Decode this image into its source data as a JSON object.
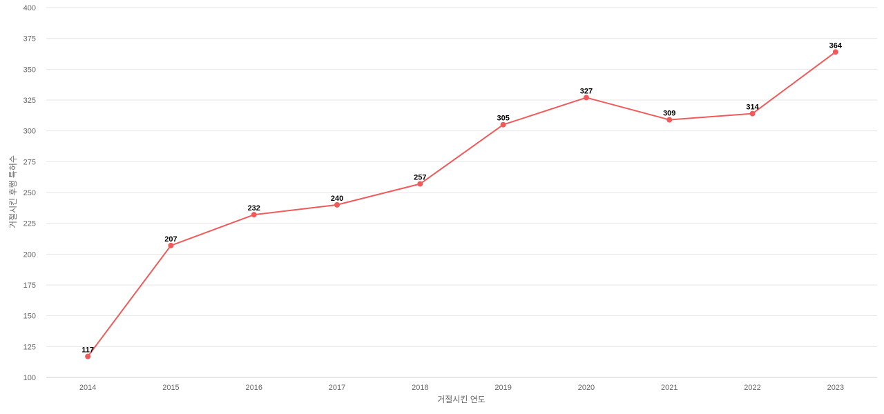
{
  "chart_data": {
    "type": "line",
    "title": "",
    "xlabel": "거절시킨 연도",
    "ylabel": "거절시킨 후행 특허수",
    "categories": [
      "2014",
      "2015",
      "2016",
      "2017",
      "2018",
      "2019",
      "2020",
      "2021",
      "2022",
      "2023"
    ],
    "series": [
      {
        "values": [
          117,
          207,
          232,
          240,
          257,
          305,
          327,
          309,
          314,
          364
        ]
      }
    ],
    "ylim": [
      100,
      400
    ],
    "yticks": [
      100,
      125,
      150,
      175,
      200,
      225,
      250,
      275,
      300,
      325,
      350,
      375,
      400
    ],
    "grid": true,
    "legend": "none",
    "data_labels": true,
    "colors": {
      "line": "#f05a5a",
      "grid": "#e6e6e6",
      "tick_text": "#666666",
      "label_text": "#000000"
    }
  }
}
